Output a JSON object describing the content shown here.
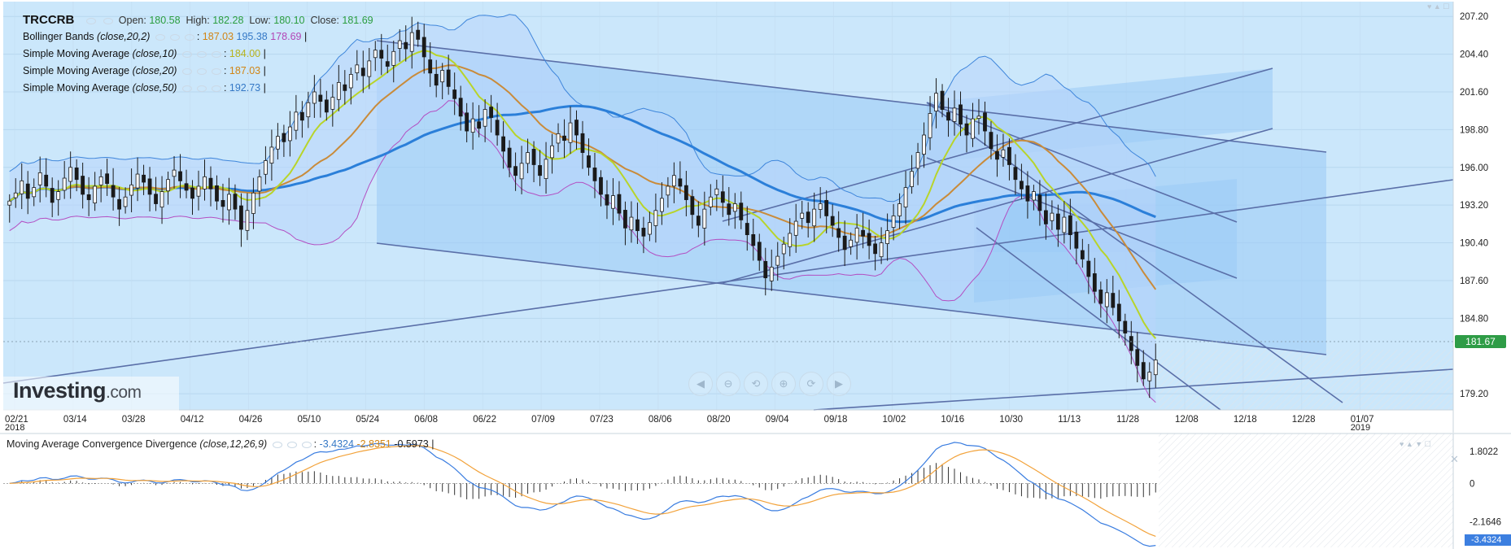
{
  "chart_data": [
    {
      "type": "candlestick",
      "symbol": "TRCCRB",
      "ohlc_header": {
        "open_label": "Open:",
        "open": "180.58",
        "high_label": "High:",
        "high": "182.28",
        "low_label": "Low:",
        "low": "180.10",
        "close_label": "Close:",
        "close": "181.69"
      },
      "current_price_tag": "181.67",
      "y_ticks": [
        "207.20",
        "204.40",
        "201.60",
        "198.80",
        "196.00",
        "193.20",
        "190.40",
        "187.60",
        "184.80",
        "179.20"
      ],
      "x_ticks": [
        "02/21",
        "03/14",
        "03/28",
        "04/12",
        "04/26",
        "05/10",
        "05/24",
        "06/08",
        "06/22",
        "07/09",
        "07/23",
        "08/06",
        "08/20",
        "09/04",
        "09/18",
        "10/02",
        "10/16",
        "10/30",
        "11/13",
        "11/28",
        "12/08",
        "12/18",
        "12/28",
        "01/07"
      ],
      "x_year_labels": {
        "start": "2018",
        "end": "2019"
      },
      "y_range": [
        178.0,
        208.3
      ],
      "closes_approx": [
        193.5,
        194.1,
        195.0,
        193.7,
        194.5,
        195.6,
        194.6,
        193.4,
        194.2,
        195.2,
        196.0,
        195.1,
        194.0,
        193.6,
        194.6,
        195.3,
        194.8,
        193.8,
        192.9,
        193.8,
        194.7,
        195.5,
        194.9,
        194.0,
        193.3,
        194.2,
        195.1,
        195.8,
        195.0,
        194.3,
        193.7,
        194.6,
        195.3,
        194.4,
        193.5,
        193.1,
        194.0,
        192.9,
        191.4,
        192.8,
        194.1,
        195.3,
        196.5,
        197.5,
        198.3,
        197.9,
        199.0,
        200.1,
        199.5,
        200.8,
        201.6,
        200.9,
        200.1,
        201.2,
        202.3,
        201.7,
        202.9,
        203.6,
        202.8,
        203.9,
        204.7,
        204.1,
        203.5,
        204.6,
        205.4,
        204.8,
        206.0,
        205.5,
        204.2,
        203.0,
        202.1,
        203.2,
        202.0,
        201.1,
        199.8,
        198.7,
        199.6,
        198.9,
        200.3,
        199.7,
        198.4,
        197.2,
        196.0,
        195.4,
        196.3,
        197.1,
        196.2,
        195.4,
        196.6,
        197.6,
        198.5,
        198.0,
        199.3,
        198.4,
        197.1,
        196.0,
        195.0,
        194.0,
        193.2,
        193.9,
        192.6,
        191.5,
        192.3,
        191.3,
        190.9,
        191.9,
        192.8,
        193.7,
        194.6,
        195.4,
        194.6,
        193.6,
        192.5,
        191.7,
        192.9,
        193.8,
        194.4,
        193.4,
        192.5,
        193.3,
        192.1,
        191.0,
        190.2,
        189.1,
        187.8,
        188.6,
        189.4,
        190.3,
        191.1,
        192.0,
        192.6,
        191.9,
        192.9,
        193.3,
        192.4,
        191.7,
        190.8,
        189.9,
        190.6,
        191.5,
        190.9,
        190.2,
        189.6,
        190.4,
        191.3,
        192.4,
        193.3,
        194.5,
        195.7,
        197.1,
        198.4,
        200.0,
        201.5,
        200.3,
        199.5,
        200.4,
        199.2,
        198.4,
        199.6,
        199.8,
        198.7,
        197.4,
        196.6,
        197.3,
        196.2,
        195.1,
        194.4,
        193.5,
        194.2,
        192.8,
        191.8,
        192.6,
        191.4,
        192.3,
        191.0,
        190.0,
        189.2,
        187.9,
        186.8,
        185.9,
        186.7,
        185.6,
        184.6,
        183.7,
        182.4,
        181.3,
        180.3,
        180.8,
        181.7
      ],
      "series": [
        {
          "name": "Bollinger Bands (close,20,2)",
          "color": "#3f86db",
          "values_shown": [
            "187.03",
            "195.38",
            "178.69"
          ]
        },
        {
          "name": "Simple Moving Average (close,10)",
          "color": "#b8d42a",
          "value_shown": "184.00"
        },
        {
          "name": "Simple Moving Average (close,20)",
          "color": "#d18a2e",
          "value_shown": "187.03"
        },
        {
          "name": "Simple Moving Average (close,50)",
          "color": "#2b7fd9",
          "value_shown": "192.73"
        }
      ]
    },
    {
      "type": "line",
      "title": "Moving Average Convergence Divergence",
      "params": "(close,12,26,9)",
      "values_shown": {
        "macd": "-3.4324",
        "signal": "-2.8351",
        "hist": "-0.5973"
      },
      "y_ticks": [
        "1.8022",
        "0",
        "-2.1646"
      ],
      "last_tag": "-3.4324",
      "y_range": [
        -3.6,
        2.8
      ]
    }
  ],
  "legend": {
    "bb": {
      "name": "Bollinger Bands",
      "params": "(close,20,2)",
      "v1": "187.03",
      "v2": "195.38",
      "v3": "178.69"
    },
    "sma10": {
      "name": "Simple Moving Average",
      "params": "(close,10)",
      "value": "184.00"
    },
    "sma20": {
      "name": "Simple Moving Average",
      "params": "(close,20)",
      "value": "187.03"
    },
    "sma50": {
      "name": "Simple Moving Average",
      "params": "(close,50)",
      "value": "192.73"
    }
  },
  "logo": {
    "brand": "Investing",
    "suffix": ".com"
  },
  "colors": {
    "panel_bg": "#cbe7fb",
    "grid": "#b6d5ee",
    "channel": "#5a6fa8",
    "candle": "#1a1a1a"
  }
}
